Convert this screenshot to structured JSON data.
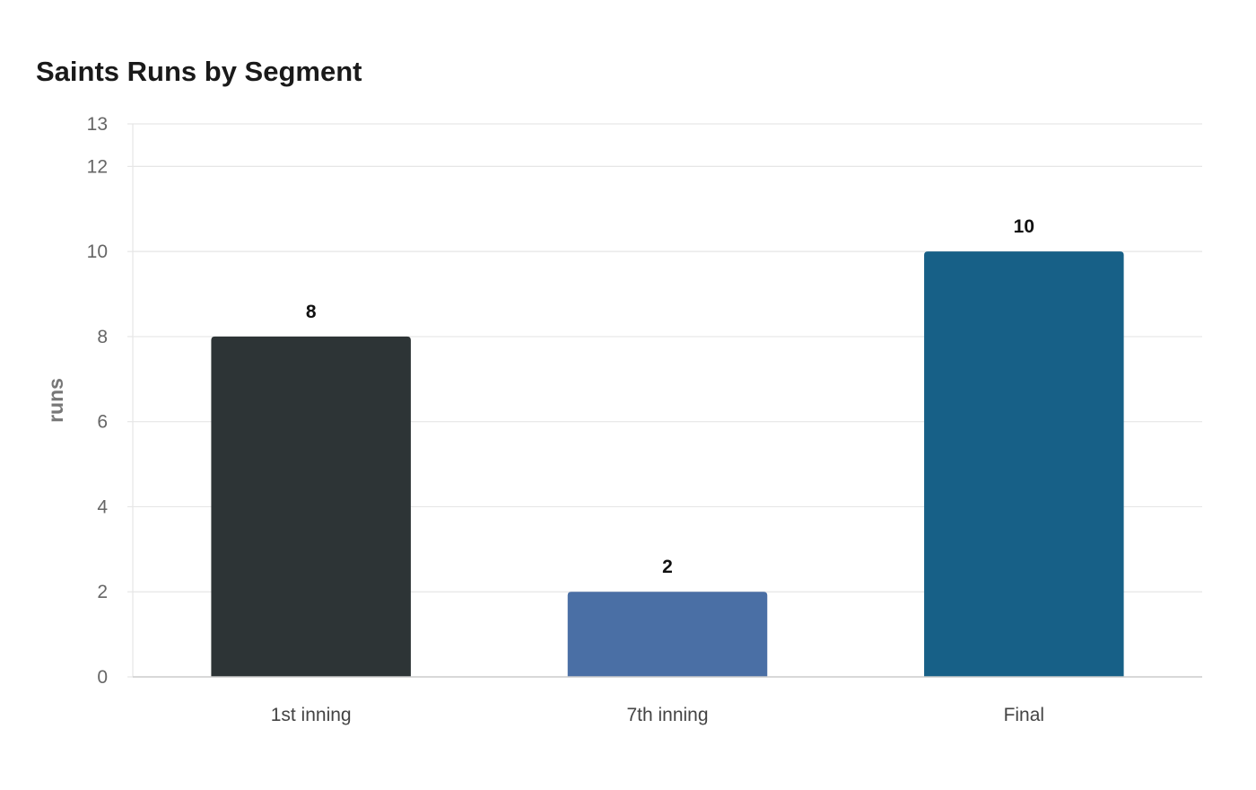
{
  "chart_data": {
    "type": "bar",
    "title": "Saints Runs by Segment",
    "xlabel": "",
    "ylabel": "runs",
    "categories": [
      "1st inning",
      "7th inning",
      "Final"
    ],
    "values": [
      8,
      2,
      10
    ],
    "bar_colors": [
      "#2d3436",
      "#4a6fa5",
      "#176087"
    ],
    "ylim": [
      0,
      13
    ],
    "yticks": [
      0,
      2,
      4,
      6,
      8,
      10,
      12,
      13
    ],
    "data_labels": [
      "8",
      "2",
      "10"
    ],
    "grid": true,
    "legend": "none"
  }
}
